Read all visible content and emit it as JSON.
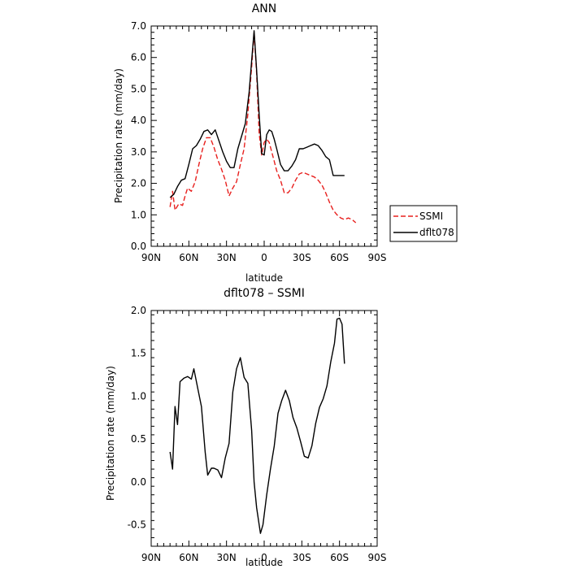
{
  "chart_data": [
    {
      "type": "line",
      "title": "ANN",
      "xlabel": "latitude",
      "ylabel": "Precipitation rate  (mm/day)",
      "xlim": [
        90,
        -90
      ],
      "ylim": [
        0,
        7
      ],
      "x_ticks": [
        {
          "value": 90,
          "label": "90N"
        },
        {
          "value": 60,
          "label": "60N"
        },
        {
          "value": 30,
          "label": "30N"
        },
        {
          "value": 0,
          "label": "0"
        },
        {
          "value": -30,
          "label": "30S"
        },
        {
          "value": -60,
          "label": "60S"
        },
        {
          "value": -90,
          "label": "90S"
        }
      ],
      "y_ticks": [
        {
          "value": 0,
          "label": "0.0"
        },
        {
          "value": 1,
          "label": "1.0"
        },
        {
          "value": 2,
          "label": "2.0"
        },
        {
          "value": 3,
          "label": "3.0"
        },
        {
          "value": 4,
          "label": "4.0"
        },
        {
          "value": 5,
          "label": "5.0"
        },
        {
          "value": 6,
          "label": "6.0"
        },
        {
          "value": 7,
          "label": "7.0"
        }
      ],
      "legend_position": "right",
      "series": [
        {
          "name": "SSMI",
          "color": "#e8201e",
          "dash": "dashed",
          "x": [
            75,
            73,
            71,
            68,
            65,
            63,
            61,
            58,
            55,
            52,
            49,
            46,
            43,
            40,
            37,
            34,
            31,
            28,
            25,
            22,
            19,
            16,
            13,
            10,
            8,
            6,
            4,
            2,
            0,
            -2,
            -4,
            -6,
            -8,
            -10,
            -13,
            -16,
            -19,
            -22,
            -25,
            -28,
            -31,
            -34,
            -37,
            -40,
            -43,
            -46,
            -49,
            -52,
            -55,
            -58,
            -61,
            -64,
            -67,
            -70,
            -73
          ],
          "y": [
            1.25,
            1.75,
            1.15,
            1.35,
            1.3,
            1.6,
            1.85,
            1.75,
            2.05,
            2.6,
            3.1,
            3.45,
            3.45,
            3.15,
            2.75,
            2.45,
            2.1,
            1.6,
            1.85,
            2.05,
            2.6,
            3.1,
            4.2,
            5.7,
            6.8,
            5.5,
            3.6,
            2.9,
            3.3,
            3.4,
            3.3,
            3.0,
            2.7,
            2.4,
            2.1,
            1.7,
            1.7,
            1.85,
            2.1,
            2.3,
            2.35,
            2.3,
            2.25,
            2.2,
            2.1,
            1.95,
            1.7,
            1.4,
            1.15,
            1.0,
            0.9,
            0.85,
            0.9,
            0.85,
            0.75
          ]
        },
        {
          "name": "dflt078",
          "color": "#000000",
          "dash": "solid",
          "x": [
            75,
            72,
            69,
            66,
            63,
            60,
            57,
            54,
            51,
            48,
            45,
            42,
            39,
            36,
            33,
            30,
            27,
            24,
            21,
            18,
            15,
            12,
            10,
            8,
            6,
            4,
            2,
            0,
            -2,
            -4,
            -6,
            -8,
            -10,
            -13,
            -16,
            -19,
            -22,
            -25,
            -28,
            -31,
            -34,
            -37,
            -40,
            -43,
            -46,
            -49,
            -52,
            -55,
            -58,
            -61,
            -64
          ],
          "y": [
            1.55,
            1.65,
            1.9,
            2.1,
            2.15,
            2.6,
            3.1,
            3.2,
            3.4,
            3.65,
            3.7,
            3.55,
            3.7,
            3.35,
            3.0,
            2.7,
            2.5,
            2.5,
            3.1,
            3.5,
            3.9,
            4.9,
            5.9,
            6.85,
            5.6,
            4.2,
            2.95,
            2.9,
            3.55,
            3.7,
            3.65,
            3.4,
            3.1,
            2.6,
            2.4,
            2.4,
            2.55,
            2.75,
            3.1,
            3.1,
            3.15,
            3.2,
            3.25,
            3.2,
            3.05,
            2.85,
            2.75,
            2.25,
            2.25,
            2.25,
            2.25
          ]
        }
      ]
    },
    {
      "type": "line",
      "title": "dflt078  –  SSMI",
      "xlabel": "latitude",
      "ylabel": "Precipitation rate  (mm/day)",
      "xlim": [
        90,
        -90
      ],
      "ylim": [
        -0.75,
        2.0
      ],
      "x_ticks": [
        {
          "value": 90,
          "label": "90N"
        },
        {
          "value": 60,
          "label": "60N"
        },
        {
          "value": 30,
          "label": "30N"
        },
        {
          "value": 0,
          "label": "0"
        },
        {
          "value": -30,
          "label": "30S"
        },
        {
          "value": -60,
          "label": "60S"
        },
        {
          "value": -90,
          "label": "90S"
        }
      ],
      "y_ticks": [
        {
          "value": -0.5,
          "label": "-0.5"
        },
        {
          "value": 0,
          "label": "0.0"
        },
        {
          "value": 0.5,
          "label": "0.5"
        },
        {
          "value": 1,
          "label": "1.0"
        },
        {
          "value": 1.5,
          "label": "1.5"
        },
        {
          "value": 2,
          "label": "2.0"
        }
      ],
      "series": [
        {
          "color": "#000000",
          "dash": "solid",
          "x": [
            75,
            73,
            71,
            69,
            67,
            64,
            61,
            58,
            56,
            53,
            50,
            47,
            45,
            42,
            40,
            37,
            34,
            31,
            28,
            25,
            22,
            19,
            16,
            13,
            10,
            8,
            6,
            3,
            1,
            -2,
            -5,
            -8,
            -11,
            -14,
            -17,
            -20,
            -23,
            -26,
            -29,
            -32,
            -35,
            -38,
            -41,
            -44,
            -47,
            -50,
            -53,
            -56,
            -58,
            -60,
            -62,
            -64
          ],
          "y": [
            0.35,
            0.15,
            0.88,
            0.67,
            1.17,
            1.21,
            1.23,
            1.2,
            1.32,
            1.1,
            0.88,
            0.35,
            0.08,
            0.16,
            0.16,
            0.14,
            0.05,
            0.28,
            0.45,
            1.05,
            1.32,
            1.45,
            1.22,
            1.15,
            0.6,
            0.0,
            -0.3,
            -0.6,
            -0.5,
            -0.15,
            0.15,
            0.42,
            0.8,
            0.95,
            1.07,
            0.95,
            0.75,
            0.63,
            0.47,
            0.3,
            0.28,
            0.42,
            0.68,
            0.87,
            0.97,
            1.12,
            1.4,
            1.62,
            1.9,
            1.91,
            1.84,
            1.38
          ]
        }
      ]
    }
  ]
}
